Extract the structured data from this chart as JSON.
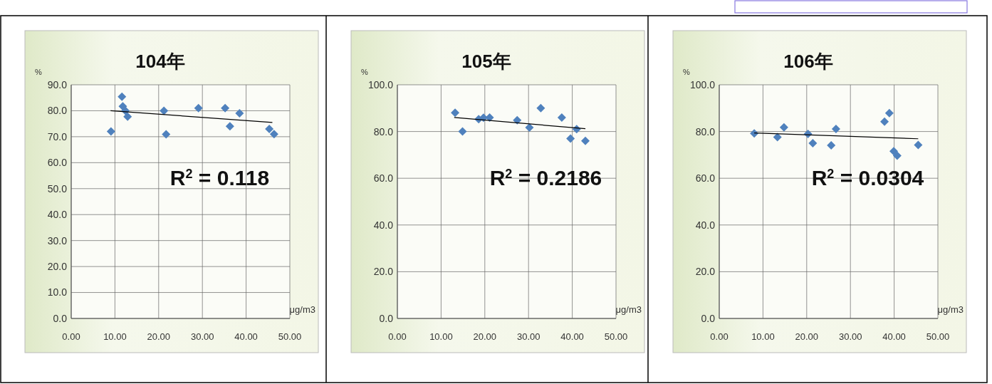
{
  "chart_data": [
    {
      "type": "scatter",
      "title": "104年",
      "xlabel": "μg/m3",
      "ylabel": "%",
      "annotations": [
        "R$^{2}$ = 0.118"
      ],
      "grid": true,
      "xlim": [
        0,
        50
      ],
      "ylim": [
        0,
        90
      ],
      "xticks": [
        {
          "value": 0,
          "label": "0.00"
        },
        {
          "value": 10,
          "label": "10.00"
        },
        {
          "value": 20,
          "label": "20.00"
        },
        {
          "value": 30,
          "label": "30.00"
        },
        {
          "value": 40,
          "label": "40.00"
        },
        {
          "value": 50,
          "label": "50.00"
        }
      ],
      "yticks": [
        {
          "value": 0,
          "label": "0.0"
        },
        {
          "value": 10,
          "label": "10.0"
        },
        {
          "value": 20,
          "label": "20.0"
        },
        {
          "value": 30,
          "label": "30.0"
        },
        {
          "value": 40,
          "label": "40.0"
        },
        {
          "value": 50,
          "label": "50.0"
        },
        {
          "value": 60,
          "label": "60.0"
        },
        {
          "value": 70,
          "label": "70.0"
        },
        {
          "value": 80,
          "label": "80.0"
        },
        {
          "value": 90,
          "label": "90.0"
        }
      ],
      "series": [
        {
          "marker": "diamond",
          "color": "#4f81bd",
          "x": [
            9.1,
            11.6,
            11.8,
            12.4,
            12.9,
            21.2,
            21.7,
            29.1,
            35.2,
            36.3,
            38.5,
            45.3,
            46.4
          ],
          "values": [
            72,
            85.4,
            81.7,
            80,
            77.7,
            80,
            70.9,
            81,
            81,
            74,
            79,
            73,
            71
          ]
        },
        {
          "type": "line",
          "marker": "none",
          "color": "#000000",
          "x": [
            9,
            46
          ],
          "values": [
            80,
            75.5
          ]
        }
      ]
    },
    {
      "type": "scatter",
      "title": "105年",
      "xlabel": "μg/m3",
      "ylabel": "%",
      "annotations": [
        "R$^{2}$ = 0.2186"
      ],
      "grid": true,
      "xlim": [
        0,
        50
      ],
      "ylim": [
        0,
        100
      ],
      "xticks": [
        {
          "value": 0,
          "label": "0.00"
        },
        {
          "value": 10,
          "label": "10.00"
        },
        {
          "value": 20,
          "label": "20.00"
        },
        {
          "value": 30,
          "label": "30.00"
        },
        {
          "value": 40,
          "label": "40.00"
        },
        {
          "value": 50,
          "label": "50.00"
        }
      ],
      "yticks": [
        {
          "value": 0,
          "label": "0.0"
        },
        {
          "value": 20,
          "label": "20.0"
        },
        {
          "value": 40,
          "label": "40.0"
        },
        {
          "value": 60,
          "label": "60.0"
        },
        {
          "value": 80,
          "label": "80.0"
        },
        {
          "value": 100,
          "label": "100.0"
        }
      ],
      "series": [
        {
          "marker": "diamond",
          "color": "#4f81bd",
          "x": [
            13.2,
            14.9,
            18.6,
            19.7,
            21.1,
            27.4,
            30.2,
            32.8,
            37.6,
            39.6,
            41,
            43
          ],
          "values": [
            88,
            80,
            85.3,
            85.9,
            86,
            84.8,
            81.7,
            90,
            86,
            77,
            81,
            76
          ]
        },
        {
          "type": "line",
          "marker": "none",
          "color": "#000000",
          "x": [
            13,
            43
          ],
          "values": [
            86,
            81.2
          ]
        }
      ]
    },
    {
      "type": "scatter",
      "title": "106年",
      "xlabel": "μg/m3",
      "ylabel": "%",
      "annotations": [
        "R$^{2}$ = 0.0304"
      ],
      "grid": true,
      "xlim": [
        0,
        50
      ],
      "ylim": [
        0,
        100
      ],
      "xticks": [
        {
          "value": 0,
          "label": "0.00"
        },
        {
          "value": 10,
          "label": "10.00"
        },
        {
          "value": 20,
          "label": "20.00"
        },
        {
          "value": 30,
          "label": "30.00"
        },
        {
          "value": 40,
          "label": "40.00"
        },
        {
          "value": 50,
          "label": "50.00"
        }
      ],
      "yticks": [
        {
          "value": 0,
          "label": "0.0"
        },
        {
          "value": 20,
          "label": "20.0"
        },
        {
          "value": 40,
          "label": "40.0"
        },
        {
          "value": 60,
          "label": "60.0"
        },
        {
          "value": 80,
          "label": "80.0"
        },
        {
          "value": 100,
          "label": "100.0"
        }
      ],
      "series": [
        {
          "marker": "diamond",
          "color": "#4f81bd",
          "x": [
            8,
            13.3,
            14.8,
            20.3,
            21.4,
            25.6,
            26.7,
            37.8,
            38.9,
            39.9,
            40.7,
            45.5
          ],
          "values": [
            79.2,
            77.6,
            81.8,
            79,
            75,
            74.1,
            81.1,
            84.2,
            87.9,
            71.6,
            69.7,
            74.2
          ]
        },
        {
          "type": "line",
          "marker": "none",
          "color": "#000000",
          "x": [
            8,
            45.5
          ],
          "values": [
            79.4,
            76.9
          ]
        }
      ]
    }
  ]
}
